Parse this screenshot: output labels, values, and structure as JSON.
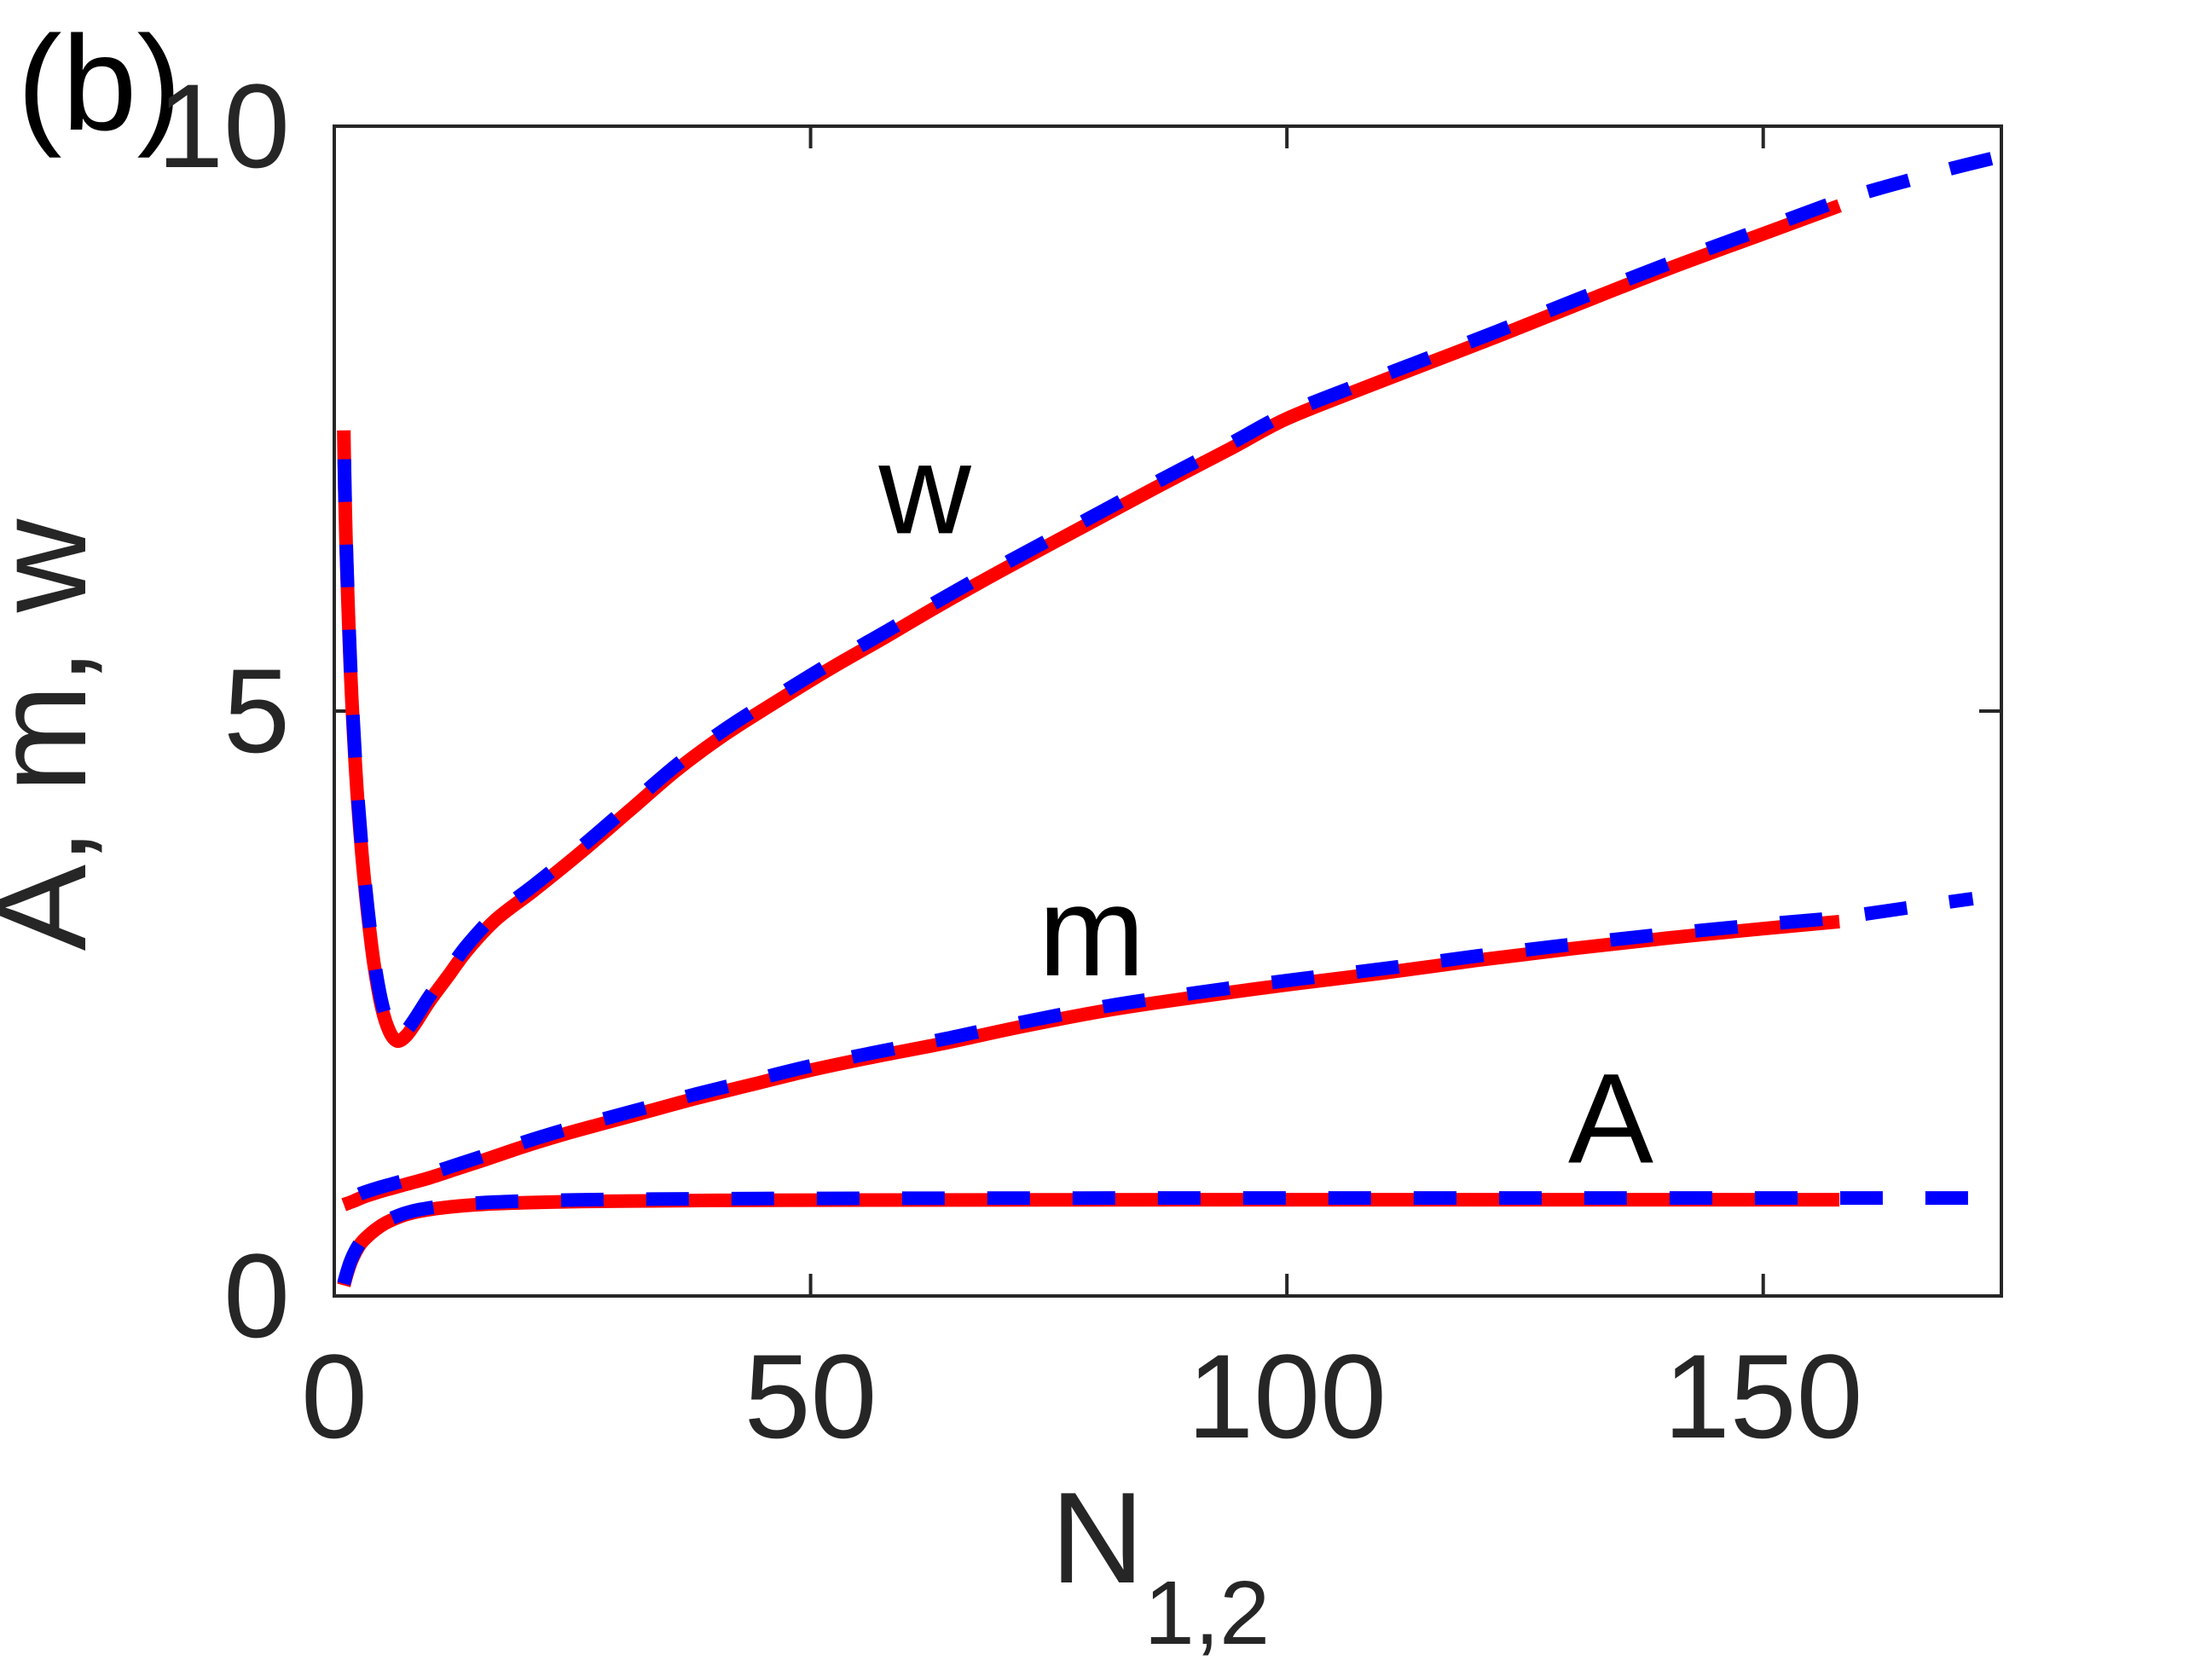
{
  "panel_label": "(b)",
  "colors": {
    "red_solid": "#ff0000",
    "blue_dashed": "#0000ff",
    "axis": "#262626",
    "text": "#000000",
    "background": "#ffffff"
  },
  "chart_data": {
    "type": "line",
    "title": "",
    "xlabel_base": "N",
    "xlabel_subscript": "1,2",
    "ylabel": "A, m, w",
    "xlim": [
      0,
      175
    ],
    "ylim": [
      0,
      10
    ],
    "xticks": [
      0,
      50,
      100,
      150
    ],
    "yticks": [
      0,
      5,
      10
    ],
    "xtick_labels": [
      "0",
      "50",
      "100",
      "150"
    ],
    "ytick_labels": [
      "0",
      "5",
      "10"
    ],
    "grid": false,
    "legend": "none",
    "box": true,
    "line_meaning": "each curve drawn twice: red solid line up to N=158 with overlaid blue dashed line extending to N~175",
    "curve_labels": [
      {
        "text": "w",
        "N": 62,
        "value": 6.9
      },
      {
        "text": "m",
        "N": 79.5,
        "value": 3.12
      },
      {
        "text": "A",
        "N": 134,
        "value": 1.52
      }
    ],
    "series": [
      {
        "name": "w",
        "solid_end_N": 158,
        "dash_offset": 60,
        "points": [
          [
            1.0,
            7.4
          ],
          [
            1.1,
            6.9
          ],
          [
            1.25,
            6.4
          ],
          [
            1.45,
            5.9
          ],
          [
            1.7,
            5.35
          ],
          [
            2.0,
            4.85
          ],
          [
            2.4,
            4.3
          ],
          [
            2.9,
            3.78
          ],
          [
            3.5,
            3.28
          ],
          [
            4.2,
            2.82
          ],
          [
            5.0,
            2.46
          ],
          [
            5.8,
            2.26
          ],
          [
            6.6,
            2.18
          ],
          [
            7.5,
            2.22
          ],
          [
            8.5,
            2.33
          ],
          [
            10,
            2.52
          ],
          [
            12,
            2.74
          ],
          [
            14,
            2.96
          ],
          [
            17,
            3.22
          ],
          [
            21,
            3.47
          ],
          [
            26,
            3.8
          ],
          [
            31,
            4.15
          ],
          [
            36,
            4.5
          ],
          [
            41,
            4.8
          ],
          [
            46,
            5.06
          ],
          [
            52,
            5.36
          ],
          [
            58,
            5.64
          ],
          [
            63,
            5.88
          ],
          [
            70,
            6.2
          ],
          [
            78,
            6.55
          ],
          [
            86,
            6.9
          ],
          [
            94,
            7.24
          ],
          [
            100,
            7.5
          ],
          [
            108,
            7.76
          ],
          [
            115,
            7.98
          ],
          [
            122,
            8.2
          ],
          [
            130,
            8.46
          ],
          [
            140,
            8.78
          ],
          [
            150,
            9.08
          ],
          [
            158,
            9.32
          ],
          [
            162,
            9.42
          ],
          [
            166,
            9.51
          ],
          [
            170,
            9.6
          ],
          [
            175,
            9.7
          ]
        ]
      },
      {
        "name": "m",
        "solid_end_N": 158,
        "dash_offset": 80,
        "points": [
          [
            1.0,
            0.78
          ],
          [
            2,
            0.81
          ],
          [
            3,
            0.845
          ],
          [
            4.5,
            0.885
          ],
          [
            6,
            0.92
          ],
          [
            8,
            0.965
          ],
          [
            10,
            1.01
          ],
          [
            13,
            1.09
          ],
          [
            16,
            1.17
          ],
          [
            20,
            1.28
          ],
          [
            24,
            1.38
          ],
          [
            28,
            1.47
          ],
          [
            33,
            1.58
          ],
          [
            38,
            1.69
          ],
          [
            44,
            1.81
          ],
          [
            50,
            1.93
          ],
          [
            57,
            2.05
          ],
          [
            64,
            2.16
          ],
          [
            72,
            2.3
          ],
          [
            81,
            2.44
          ],
          [
            90,
            2.55
          ],
          [
            100,
            2.66
          ],
          [
            110,
            2.76
          ],
          [
            120,
            2.87
          ],
          [
            130,
            2.97
          ],
          [
            140,
            3.06
          ],
          [
            150,
            3.14
          ],
          [
            158,
            3.2
          ],
          [
            165,
            3.28
          ],
          [
            172,
            3.36
          ]
        ]
      },
      {
        "name": "A",
        "solid_end_N": 158,
        "dash_offset": 100,
        "points": [
          [
            1.0,
            0.09
          ],
          [
            1.3,
            0.18
          ],
          [
            1.7,
            0.28
          ],
          [
            2.2,
            0.37
          ],
          [
            2.8,
            0.45
          ],
          [
            3.5,
            0.51
          ],
          [
            4.3,
            0.565
          ],
          [
            5.2,
            0.615
          ],
          [
            6.2,
            0.655
          ],
          [
            7.5,
            0.695
          ],
          [
            9,
            0.725
          ],
          [
            11,
            0.75
          ],
          [
            13,
            0.768
          ],
          [
            16,
            0.785
          ],
          [
            20,
            0.797
          ],
          [
            25,
            0.806
          ],
          [
            30,
            0.811
          ],
          [
            40,
            0.817
          ],
          [
            55,
            0.82
          ],
          [
            75,
            0.822
          ],
          [
            100,
            0.823
          ],
          [
            130,
            0.823
          ],
          [
            158,
            0.823
          ],
          [
            165,
            0.823
          ],
          [
            172,
            0.823
          ]
        ]
      }
    ]
  }
}
